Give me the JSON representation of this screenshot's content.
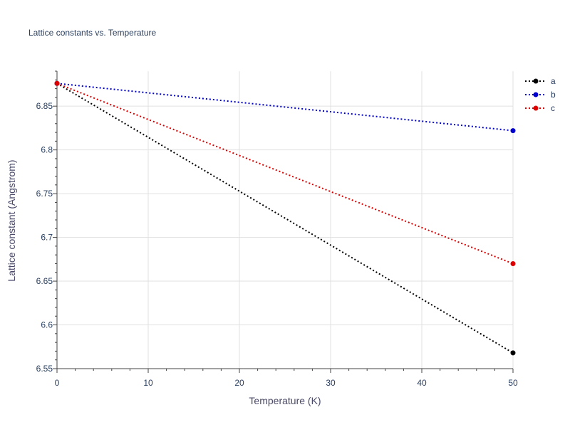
{
  "chart_data": {
    "type": "line",
    "title": "Lattice constants vs. Temperature",
    "xlabel": "Temperature (K)",
    "ylabel": "Lattice constant (Angstrom)",
    "x": [
      0,
      50
    ],
    "xlim": [
      0,
      50
    ],
    "ylim": [
      6.55,
      6.89
    ],
    "x_ticks": [
      "0",
      "10",
      "20",
      "30",
      "40",
      "50"
    ],
    "y_ticks": [
      "6.55",
      "6.6",
      "6.65",
      "6.7",
      "6.75",
      "6.8",
      "6.85"
    ],
    "grid": true,
    "legend_position": "top-right",
    "series": [
      {
        "name": "a",
        "color": "#000000",
        "values": [
          6.876,
          6.568
        ]
      },
      {
        "name": "b",
        "color": "#0000cc",
        "values": [
          6.876,
          6.822
        ]
      },
      {
        "name": "c",
        "color": "#dd0000",
        "values": [
          6.876,
          6.67
        ]
      }
    ]
  }
}
